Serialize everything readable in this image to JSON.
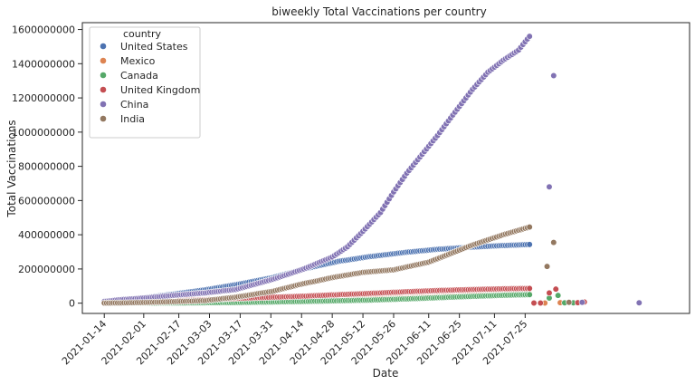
{
  "chart_data": {
    "type": "scatter",
    "title": "biweekly Total Vaccinations per country",
    "xlabel": "Date",
    "ylabel": "Total Vaccinations",
    "xlim": [
      "2021-01-04",
      "2021-10-08"
    ],
    "ylim": [
      -60000000,
      1640000000
    ],
    "y_ticks": [
      0,
      200000000,
      400000000,
      600000000,
      800000000,
      1000000000,
      1200000000,
      1400000000,
      1600000000
    ],
    "y_tick_labels": [
      "0",
      "200000000",
      "400000000",
      "600000000",
      "800000000",
      "1000000000",
      "1200000000",
      "1400000000",
      "1600000000"
    ],
    "x_ticks": [
      "2021-01-14",
      "2021-02-01",
      "2021-02-17",
      "2021-03-03",
      "2021-03-17",
      "2021-03-31",
      "2021-04-14",
      "2021-04-28",
      "2021-05-12",
      "2021-05-26",
      "2021-06-11",
      "2021-06-25",
      "2021-07-11",
      "2021-07-25"
    ],
    "grid": false,
    "legend": {
      "title": "country",
      "placement": "top-left"
    },
    "series": [
      {
        "name": "United States",
        "color": "#4c72b0",
        "points": [
          [
            "2021-01-14",
            13000000
          ],
          [
            "2021-01-21",
            20000000
          ],
          [
            "2021-02-01",
            32000000
          ],
          [
            "2021-02-14",
            52000000
          ],
          [
            "2021-03-01",
            78000000
          ],
          [
            "2021-03-15",
            108000000
          ],
          [
            "2021-04-01",
            150000000
          ],
          [
            "2021-04-15",
            200000000
          ],
          [
            "2021-05-01",
            245000000
          ],
          [
            "2021-05-15",
            272000000
          ],
          [
            "2021-06-01",
            298000000
          ],
          [
            "2021-06-15",
            315000000
          ],
          [
            "2021-07-01",
            328000000
          ],
          [
            "2021-07-15",
            337000000
          ],
          [
            "2021-07-27",
            343000000
          ]
        ]
      },
      {
        "name": "Mexico",
        "color": "#dd8452",
        "points": [
          [
            "2021-01-14",
            400000
          ],
          [
            "2021-02-01",
            700000
          ],
          [
            "2021-03-01",
            2500000
          ],
          [
            "2021-04-01",
            8000000
          ],
          [
            "2021-05-01",
            18000000
          ],
          [
            "2021-06-01",
            30000000
          ],
          [
            "2021-07-01",
            45000000
          ],
          [
            "2021-07-27",
            55000000
          ],
          [
            "2021-08-03",
            1000000
          ],
          [
            "2021-08-10",
            3000000
          ]
        ]
      },
      {
        "name": "Canada",
        "color": "#55a868",
        "points": [
          [
            "2021-01-14",
            500000
          ],
          [
            "2021-02-01",
            1000000
          ],
          [
            "2021-02-15",
            1500000
          ],
          [
            "2021-03-01",
            2500000
          ],
          [
            "2021-03-15",
            3800000
          ],
          [
            "2021-04-01",
            7000000
          ],
          [
            "2021-04-15",
            10000000
          ],
          [
            "2021-05-01",
            14000000
          ],
          [
            "2021-05-15",
            18000000
          ],
          [
            "2021-06-01",
            25000000
          ],
          [
            "2021-06-15",
            32000000
          ],
          [
            "2021-07-01",
            40000000
          ],
          [
            "2021-07-15",
            46000000
          ],
          [
            "2021-07-27",
            50000000
          ],
          [
            "2021-08-05",
            30000000
          ],
          [
            "2021-08-09",
            45000000
          ],
          [
            "2021-08-12",
            2000000
          ],
          [
            "2021-08-16",
            2000000
          ]
        ]
      },
      {
        "name": "United Kingdom",
        "color": "#c44e52",
        "points": [
          [
            "2021-01-14",
            3000000
          ],
          [
            "2021-02-01",
            9000000
          ],
          [
            "2021-02-15",
            14000000
          ],
          [
            "2021-03-01",
            20000000
          ],
          [
            "2021-03-15",
            28000000
          ],
          [
            "2021-04-01",
            35000000
          ],
          [
            "2021-04-15",
            41000000
          ],
          [
            "2021-05-01",
            50000000
          ],
          [
            "2021-05-15",
            57000000
          ],
          [
            "2021-06-01",
            67000000
          ],
          [
            "2021-06-15",
            74000000
          ],
          [
            "2021-07-01",
            80000000
          ],
          [
            "2021-07-15",
            84000000
          ],
          [
            "2021-07-27",
            86000000
          ],
          [
            "2021-07-29",
            1000000
          ],
          [
            "2021-08-01",
            1000000
          ],
          [
            "2021-08-05",
            60000000
          ],
          [
            "2021-08-08",
            82000000
          ],
          [
            "2021-08-18",
            3000000
          ],
          [
            "2021-08-21",
            7000000
          ]
        ]
      },
      {
        "name": "China",
        "color": "#8172b3",
        "points": [
          [
            "2021-01-14",
            10000000
          ],
          [
            "2021-01-21",
            20000000
          ],
          [
            "2021-02-01",
            30000000
          ],
          [
            "2021-02-14",
            45000000
          ],
          [
            "2021-03-01",
            60000000
          ],
          [
            "2021-03-15",
            80000000
          ],
          [
            "2021-04-01",
            140000000
          ],
          [
            "2021-04-15",
            200000000
          ],
          [
            "2021-04-28",
            270000000
          ],
          [
            "2021-05-05",
            330000000
          ],
          [
            "2021-05-12",
            420000000
          ],
          [
            "2021-05-20",
            530000000
          ],
          [
            "2021-05-26",
            650000000
          ],
          [
            "2021-06-01",
            760000000
          ],
          [
            "2021-06-08",
            870000000
          ],
          [
            "2021-06-15",
            980000000
          ],
          [
            "2021-06-22",
            1100000000
          ],
          [
            "2021-07-01",
            1250000000
          ],
          [
            "2021-07-08",
            1350000000
          ],
          [
            "2021-07-15",
            1420000000
          ],
          [
            "2021-07-22",
            1480000000
          ],
          [
            "2021-07-27",
            1560000000
          ],
          [
            "2021-08-05",
            680000000
          ],
          [
            "2021-08-07",
            1330000000
          ],
          [
            "2021-08-20",
            5000000
          ],
          [
            "2021-09-15",
            2000000
          ]
        ]
      },
      {
        "name": "India",
        "color": "#937860",
        "points": [
          [
            "2021-01-14",
            1000000
          ],
          [
            "2021-01-21",
            1500000
          ],
          [
            "2021-02-01",
            4000000
          ],
          [
            "2021-02-15",
            9000000
          ],
          [
            "2021-03-01",
            15000000
          ],
          [
            "2021-03-15",
            35000000
          ],
          [
            "2021-04-01",
            70000000
          ],
          [
            "2021-04-15",
            115000000
          ],
          [
            "2021-04-21",
            130000000
          ],
          [
            "2021-04-28",
            150000000
          ],
          [
            "2021-05-12",
            180000000
          ],
          [
            "2021-05-26",
            195000000
          ],
          [
            "2021-06-11",
            240000000
          ],
          [
            "2021-06-25",
            310000000
          ],
          [
            "2021-07-01",
            340000000
          ],
          [
            "2021-07-15",
            400000000
          ],
          [
            "2021-07-27",
            445000000
          ],
          [
            "2021-08-04",
            215000000
          ],
          [
            "2021-08-07",
            355000000
          ],
          [
            "2021-08-14",
            5000000
          ]
        ]
      }
    ]
  }
}
